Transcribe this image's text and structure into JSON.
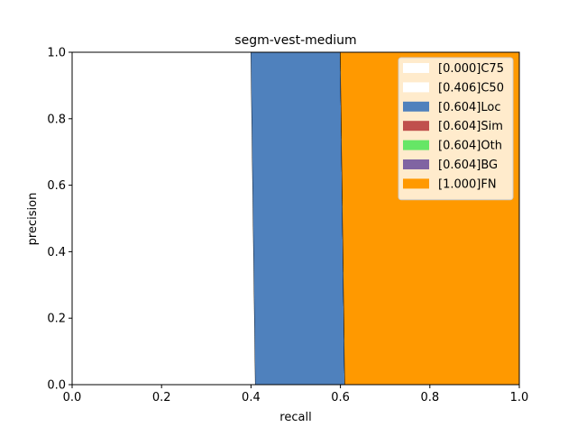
{
  "chart_data": {
    "type": "area",
    "title": "segm-vest-medium",
    "xlabel": "recall",
    "ylabel": "precision",
    "xlim": [
      0,
      1
    ],
    "ylim": [
      0,
      1
    ],
    "xticks": [
      "0.0",
      "0.2",
      "0.4",
      "0.6",
      "0.8",
      "1.0"
    ],
    "yticks": [
      "0.0",
      "0.2",
      "0.4",
      "0.6",
      "0.8",
      "1.0"
    ],
    "grid": false,
    "legend_position": "top-right",
    "series": [
      {
        "name": "[0.000]C75",
        "color": "#ffffff",
        "recall_at_precision_1": 0.0,
        "recall_at_precision_0": 0.0
      },
      {
        "name": "[0.406]C50",
        "color": "#ffffff",
        "recall_at_precision_1": 0.4,
        "recall_at_precision_0": 0.41
      },
      {
        "name": "[0.604]Loc",
        "color": "#4f81bd",
        "recall_at_precision_1": 0.6,
        "recall_at_precision_0": 0.61
      },
      {
        "name": "[0.604]Sim",
        "color": "#c0504d",
        "recall_at_precision_1": 0.6,
        "recall_at_precision_0": 0.61
      },
      {
        "name": "[0.604]Oth",
        "color": "#66e666",
        "recall_at_precision_1": 0.6,
        "recall_at_precision_0": 0.61
      },
      {
        "name": "[0.604]BG",
        "color": "#8064a2",
        "recall_at_precision_1": 0.6,
        "recall_at_precision_0": 0.61
      },
      {
        "name": "[1.000]FN",
        "color": "#ff9900",
        "recall_at_precision_1": 1.0,
        "recall_at_precision_0": 1.0
      }
    ]
  }
}
